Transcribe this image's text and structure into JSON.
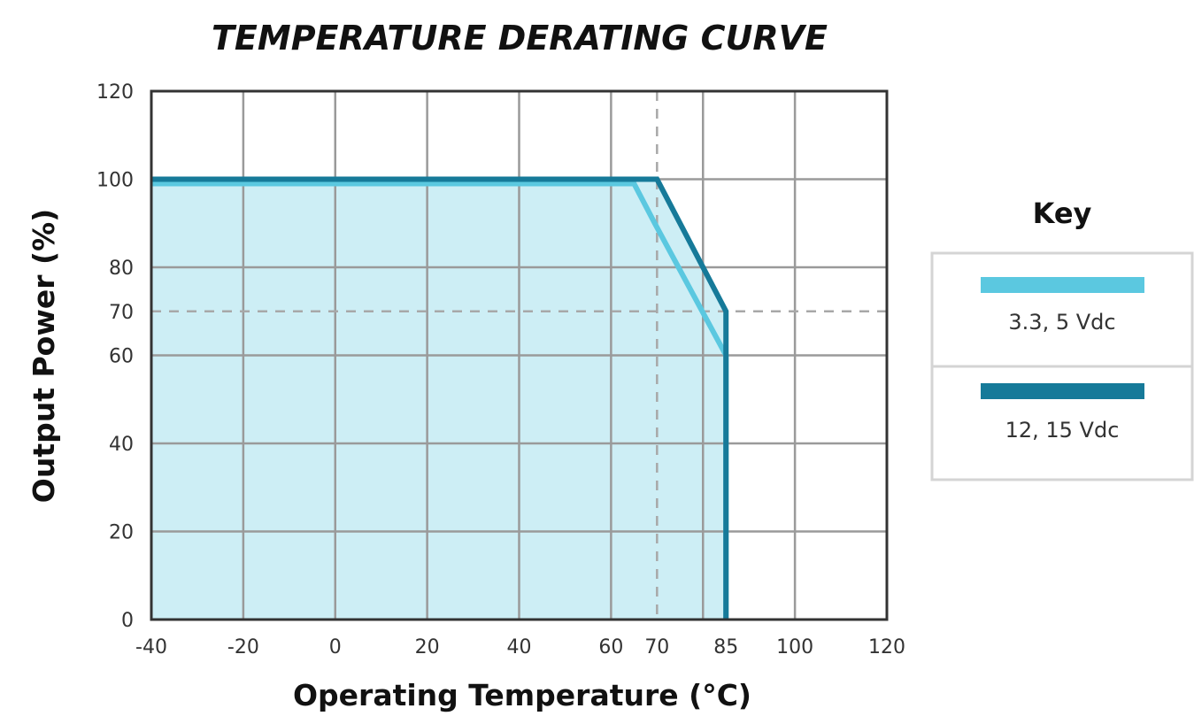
{
  "chart_data": {
    "type": "line",
    "title": "TEMPERATURE DERATING CURVE",
    "xlabel": "Operating Temperature (°C)",
    "ylabel": "Output Power (%)",
    "xlim": [
      -40,
      120
    ],
    "ylim": [
      0,
      120
    ],
    "x_ticks": [
      {
        "value": -40,
        "label": "-40"
      },
      {
        "value": -20,
        "label": "-20"
      },
      {
        "value": 0,
        "label": "0"
      },
      {
        "value": 20,
        "label": "20"
      },
      {
        "value": 40,
        "label": "40"
      },
      {
        "value": 60,
        "label": "60"
      },
      {
        "value": 70,
        "label": "70"
      },
      {
        "value": 85,
        "label": "85"
      },
      {
        "value": 100,
        "label": "100"
      },
      {
        "value": 120,
        "label": "120"
      }
    ],
    "y_ticks": [
      {
        "value": 0,
        "label": "0"
      },
      {
        "value": 20,
        "label": "20"
      },
      {
        "value": 40,
        "label": "40"
      },
      {
        "value": 60,
        "label": "60"
      },
      {
        "value": 70,
        "label": "70"
      },
      {
        "value": 80,
        "label": "80"
      },
      {
        "value": 100,
        "label": "100"
      },
      {
        "value": 120,
        "label": "120"
      }
    ],
    "x_gridlines": [
      -40,
      -20,
      0,
      20,
      40,
      60,
      80,
      100,
      120
    ],
    "y_gridlines": [
      0,
      20,
      40,
      60,
      80,
      100,
      120
    ],
    "reference_lines": {
      "x": 70,
      "y": 70
    },
    "series": [
      {
        "name": "3.3, 5 Vdc",
        "color": "#5bc8e0",
        "points": [
          [
            -40,
            99
          ],
          [
            65,
            99
          ],
          [
            69.5,
            90
          ],
          [
            85,
            60
          ],
          [
            85,
            0
          ]
        ]
      },
      {
        "name": "12, 15 Vdc",
        "color": "#167a99",
        "points": [
          [
            -40,
            100
          ],
          [
            70,
            100
          ],
          [
            85,
            70
          ],
          [
            85,
            0
          ]
        ]
      }
    ],
    "fill_color": "#cdeef5",
    "legend": {
      "title": "Key",
      "position": "right"
    }
  }
}
